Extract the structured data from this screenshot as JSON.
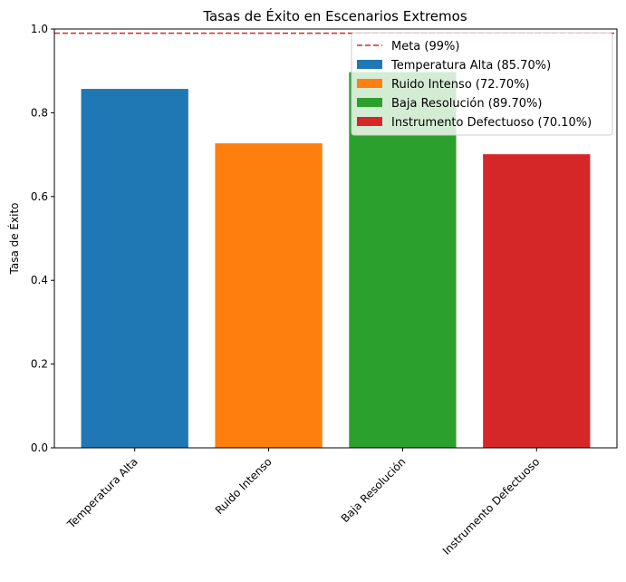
{
  "chart_data": {
    "type": "bar",
    "title": "Tasas de Éxito en Escenarios Extremos",
    "xlabel": "",
    "ylabel": "Tasa de Éxito",
    "ylim": [
      0,
      1.0
    ],
    "yticks": [
      0.0,
      0.2,
      0.4,
      0.6,
      0.8,
      1.0
    ],
    "ytick_labels": [
      "0.0",
      "0.2",
      "0.4",
      "0.6",
      "0.8",
      "1.0"
    ],
    "categories": [
      "Temperatura Alta",
      "Ruido Intenso",
      "Baja Resolución",
      "Instrumento Defectuoso"
    ],
    "values": [
      0.857,
      0.727,
      0.897,
      0.701
    ],
    "colors": [
      "#1f77b4",
      "#ff7f0e",
      "#2ca02c",
      "#d62728"
    ],
    "reference_line": {
      "value": 0.99,
      "label": "Meta (99%)",
      "color": "#d62728",
      "style": "dashed"
    },
    "legend": {
      "placement": "top-right",
      "entries": [
        {
          "label": "Meta (99%)",
          "kind": "dashed-line",
          "color": "#d62728"
        },
        {
          "label": "Temperatura Alta (85.70%)",
          "kind": "patch",
          "color": "#1f77b4"
        },
        {
          "label": "Ruido Intenso (72.70%)",
          "kind": "patch",
          "color": "#ff7f0e"
        },
        {
          "label": "Baja Resolución (89.70%)",
          "kind": "patch",
          "color": "#2ca02c"
        },
        {
          "label": "Instrumento Defectuoso (70.10%)",
          "kind": "patch",
          "color": "#d62728"
        }
      ]
    },
    "grid": false
  }
}
